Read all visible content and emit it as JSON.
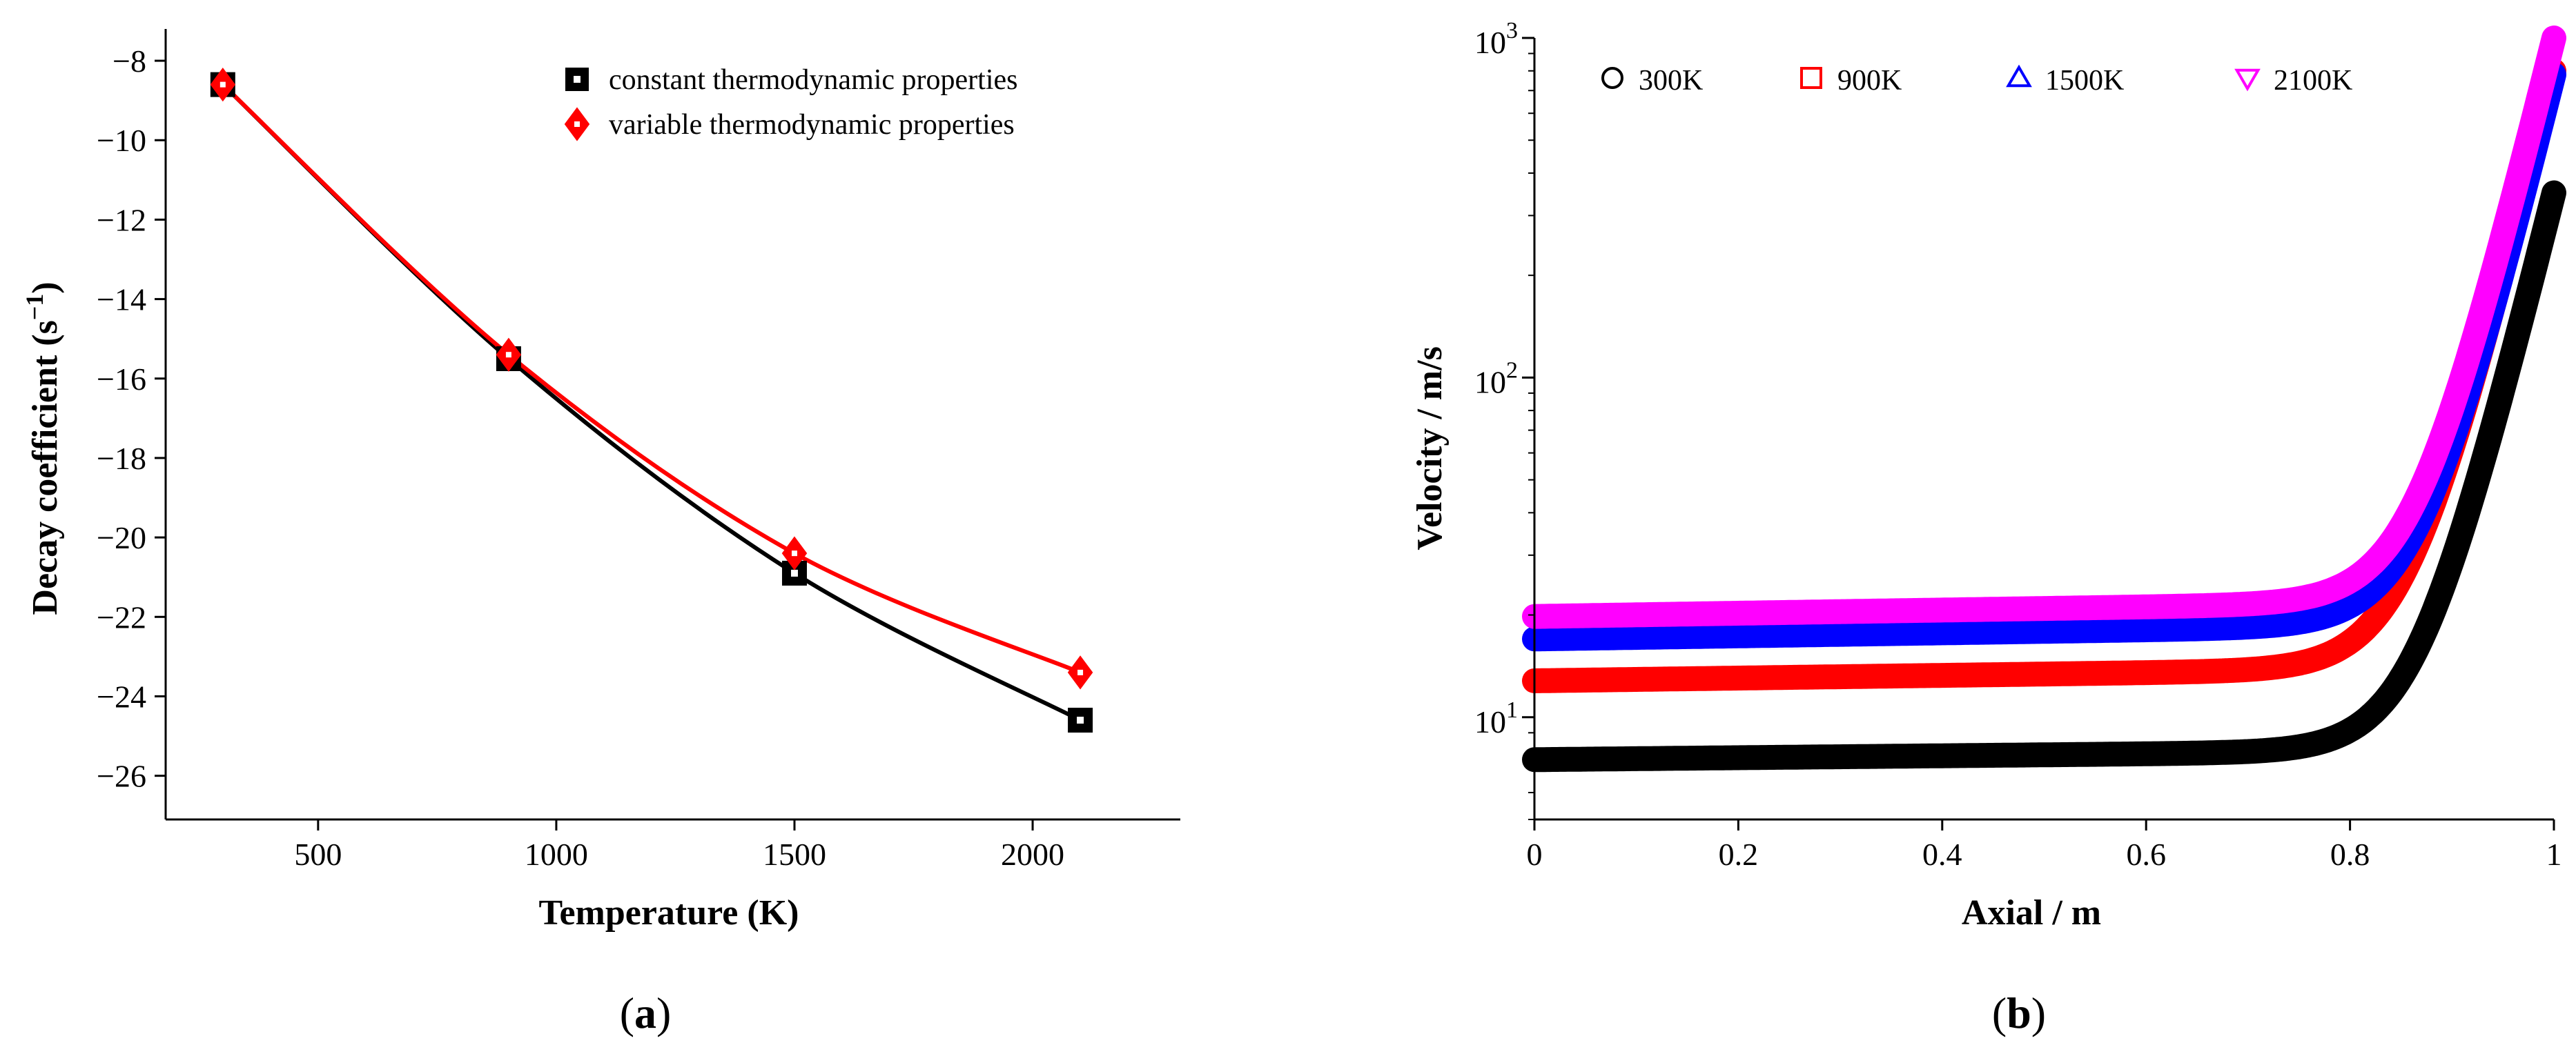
{
  "chart_data": [
    {
      "type": "line",
      "panel_label": "a",
      "xlabel": "Temperature (K)",
      "ylabel": "Decay coefficient (s",
      "ylabel_sup": "−1",
      "ylabel_close": ")",
      "xlim": [
        180,
        2310
      ],
      "ylim": [
        -27.1,
        -7.2
      ],
      "xticks": [
        500,
        1000,
        1500,
        2000
      ],
      "xtick_labels": [
        "500",
        "1000",
        "1500",
        "2000"
      ],
      "yticks": [
        -8,
        -10,
        -12,
        -14,
        -16,
        -18,
        -20,
        -22,
        -24,
        -26
      ],
      "ytick_labels": [
        "−8",
        "−10",
        "−12",
        "−14",
        "−16",
        "−18",
        "−20",
        "−22",
        "−24",
        "−26"
      ],
      "legend_position": "top-right",
      "series": [
        {
          "name": "constant thermodynamic properties",
          "marker": "square",
          "color": "#000000",
          "x": [
            300,
            900,
            1500,
            2100
          ],
          "y": [
            -8.6,
            -15.5,
            -20.9,
            -24.6
          ]
        },
        {
          "name": "variable thermodynamic properties",
          "marker": "diamond",
          "color": "#ff0000",
          "x": [
            300,
            900,
            1500,
            2100
          ],
          "y": [
            -8.6,
            -15.4,
            -20.4,
            -23.4
          ]
        }
      ]
    },
    {
      "type": "scatter",
      "panel_label": "b",
      "xlabel": "Axial / m",
      "ylabel": "Velocity / m/s",
      "xlim": [
        0,
        1
      ],
      "ylim": [
        5,
        1000
      ],
      "yscale": "log",
      "xticks": [
        0,
        0.2,
        0.4,
        0.6,
        0.8,
        1
      ],
      "xtick_labels": [
        "0",
        "0.2",
        "0.4",
        "0.6",
        "0.8",
        "1"
      ],
      "yticks": [
        10,
        100,
        1000
      ],
      "ytick_bases": [
        "10",
        "10",
        "10"
      ],
      "ytick_exponents": [
        "1",
        "2",
        "3"
      ],
      "legend_position": "top",
      "series": [
        {
          "name": "300K",
          "marker": "circle",
          "color": "#000000",
          "v0": 7.5,
          "v_mid": 8.0,
          "v_end": 350
        },
        {
          "name": "900K",
          "marker": "square",
          "color": "#ff0000",
          "v0": 12.8,
          "v_mid": 14.0,
          "v_end": 800
        },
        {
          "name": "1500K",
          "marker": "triangle-up",
          "color": "#0000ff",
          "v0": 17.0,
          "v_mid": 18.8,
          "v_end": 780
        },
        {
          "name": "2100K",
          "marker": "triangle-down",
          "color": "#ff00ff",
          "v0": 19.8,
          "v_mid": 22.0,
          "v_end": 1000
        }
      ]
    }
  ]
}
